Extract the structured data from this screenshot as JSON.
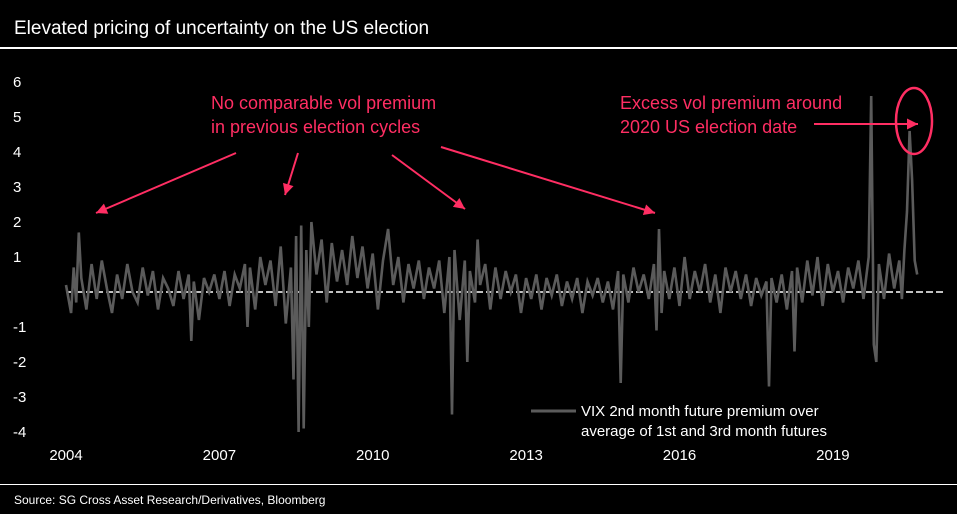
{
  "title": "Elevated pricing of uncertainty on the US election",
  "source": "Source: SG Cross Asset Research/Derivatives, Bloomberg",
  "colors": {
    "series": "#5b5b5b",
    "annotation": "#ff2e63",
    "zero_line": "#ffffff",
    "background": "#000000"
  },
  "annotations": {
    "left_line1": "No comparable vol premium",
    "left_line2": "in previous election cycles",
    "right_line1": "Excess vol premium around",
    "right_line2": "2020 US election date"
  },
  "chart_data": {
    "type": "line",
    "title": "Elevated pricing of uncertainty on the US election",
    "xlabel": "",
    "ylabel": "",
    "xlim": [
      2004.0,
      2020.9
    ],
    "ylim": [
      -4,
      6
    ],
    "x_ticks": [
      "2004",
      "2007",
      "2010",
      "2013",
      "2016",
      "2019"
    ],
    "y_ticks": [
      "6",
      "5",
      "4",
      "3",
      "2",
      "1",
      "-1",
      "-2",
      "-3",
      "-4"
    ],
    "grid": false,
    "legend_position": "bottom-right",
    "series": [
      {
        "name": "VIX 2nd month future premium over average of 1st and 3rd month futures",
        "color": "#5b5b5b",
        "points": [
          [
            2004.0,
            0.2
          ],
          [
            2004.1,
            -0.6
          ],
          [
            2004.15,
            0.7
          ],
          [
            2004.2,
            -0.3
          ],
          [
            2004.25,
            1.7
          ],
          [
            2004.3,
            0.4
          ],
          [
            2004.4,
            -0.5
          ],
          [
            2004.5,
            0.8
          ],
          [
            2004.6,
            -0.2
          ],
          [
            2004.7,
            0.9
          ],
          [
            2004.8,
            0.1
          ],
          [
            2004.9,
            -0.6
          ],
          [
            2005.0,
            0.5
          ],
          [
            2005.1,
            -0.2
          ],
          [
            2005.2,
            0.8
          ],
          [
            2005.3,
            0.0
          ],
          [
            2005.4,
            -0.3
          ],
          [
            2005.5,
            0.7
          ],
          [
            2005.6,
            -0.1
          ],
          [
            2005.7,
            0.6
          ],
          [
            2005.8,
            -0.5
          ],
          [
            2005.9,
            0.4
          ],
          [
            2006.0,
            0.1
          ],
          [
            2006.1,
            -0.4
          ],
          [
            2006.2,
            0.6
          ],
          [
            2006.3,
            -0.2
          ],
          [
            2006.4,
            0.5
          ],
          [
            2006.45,
            -1.4
          ],
          [
            2006.5,
            0.3
          ],
          [
            2006.6,
            -0.8
          ],
          [
            2006.7,
            0.4
          ],
          [
            2006.8,
            0.0
          ],
          [
            2006.9,
            0.5
          ],
          [
            2007.0,
            -0.2
          ],
          [
            2007.1,
            0.6
          ],
          [
            2007.2,
            -0.4
          ],
          [
            2007.3,
            0.5
          ],
          [
            2007.4,
            0.1
          ],
          [
            2007.5,
            0.8
          ],
          [
            2007.55,
            -1.0
          ],
          [
            2007.6,
            0.7
          ],
          [
            2007.7,
            -0.5
          ],
          [
            2007.8,
            1.0
          ],
          [
            2007.9,
            0.2
          ],
          [
            2008.0,
            0.9
          ],
          [
            2008.1,
            -0.4
          ],
          [
            2008.2,
            1.3
          ],
          [
            2008.3,
            -0.9
          ],
          [
            2008.4,
            0.7
          ],
          [
            2008.45,
            -2.5
          ],
          [
            2008.5,
            1.6
          ],
          [
            2008.55,
            -4.0
          ],
          [
            2008.6,
            1.9
          ],
          [
            2008.65,
            -3.9
          ],
          [
            2008.7,
            1.2
          ],
          [
            2008.75,
            -1.0
          ],
          [
            2008.8,
            2.0
          ],
          [
            2008.9,
            0.5
          ],
          [
            2009.0,
            1.5
          ],
          [
            2009.1,
            -0.3
          ],
          [
            2009.2,
            1.4
          ],
          [
            2009.3,
            0.3
          ],
          [
            2009.4,
            1.2
          ],
          [
            2009.5,
            0.2
          ],
          [
            2009.6,
            1.6
          ],
          [
            2009.7,
            0.4
          ],
          [
            2009.8,
            1.3
          ],
          [
            2009.9,
            0.1
          ],
          [
            2010.0,
            1.1
          ],
          [
            2010.1,
            -0.5
          ],
          [
            2010.2,
            0.9
          ],
          [
            2010.3,
            1.8
          ],
          [
            2010.4,
            0.2
          ],
          [
            2010.5,
            1.0
          ],
          [
            2010.6,
            -0.3
          ],
          [
            2010.7,
            0.8
          ],
          [
            2010.8,
            0.1
          ],
          [
            2010.9,
            0.9
          ],
          [
            2011.0,
            -0.2
          ],
          [
            2011.1,
            0.7
          ],
          [
            2011.2,
            0.1
          ],
          [
            2011.3,
            0.9
          ],
          [
            2011.4,
            -0.6
          ],
          [
            2011.5,
            1.0
          ],
          [
            2011.55,
            -3.5
          ],
          [
            2011.6,
            1.2
          ],
          [
            2011.7,
            -0.8
          ],
          [
            2011.8,
            0.9
          ],
          [
            2011.85,
            -2.0
          ],
          [
            2011.9,
            0.6
          ],
          [
            2012.0,
            -0.3
          ],
          [
            2012.05,
            1.5
          ],
          [
            2012.1,
            0.2
          ],
          [
            2012.2,
            0.8
          ],
          [
            2012.3,
            -0.5
          ],
          [
            2012.4,
            0.7
          ],
          [
            2012.5,
            -0.2
          ],
          [
            2012.6,
            0.6
          ],
          [
            2012.7,
            0.0
          ],
          [
            2012.8,
            0.5
          ],
          [
            2012.9,
            -0.6
          ],
          [
            2013.0,
            0.4
          ],
          [
            2013.1,
            -0.2
          ],
          [
            2013.2,
            0.5
          ],
          [
            2013.3,
            -0.5
          ],
          [
            2013.4,
            0.4
          ],
          [
            2013.5,
            -0.1
          ],
          [
            2013.6,
            0.5
          ],
          [
            2013.7,
            -0.4
          ],
          [
            2013.8,
            0.3
          ],
          [
            2013.9,
            -0.2
          ],
          [
            2014.0,
            0.4
          ],
          [
            2014.1,
            -0.6
          ],
          [
            2014.2,
            0.3
          ],
          [
            2014.3,
            -0.1
          ],
          [
            2014.4,
            0.4
          ],
          [
            2014.5,
            -0.3
          ],
          [
            2014.6,
            0.3
          ],
          [
            2014.7,
            -0.5
          ],
          [
            2014.8,
            0.6
          ],
          [
            2014.85,
            -2.6
          ],
          [
            2014.9,
            0.5
          ],
          [
            2015.0,
            -0.3
          ],
          [
            2015.1,
            0.7
          ],
          [
            2015.2,
            0.0
          ],
          [
            2015.3,
            0.5
          ],
          [
            2015.4,
            -0.2
          ],
          [
            2015.5,
            0.8
          ],
          [
            2015.55,
            -1.1
          ],
          [
            2015.6,
            1.8
          ],
          [
            2015.65,
            -0.6
          ],
          [
            2015.7,
            0.6
          ],
          [
            2015.8,
            -0.2
          ],
          [
            2015.9,
            0.7
          ],
          [
            2016.0,
            -0.4
          ],
          [
            2016.1,
            1.0
          ],
          [
            2016.2,
            -0.2
          ],
          [
            2016.3,
            0.6
          ],
          [
            2016.4,
            0.0
          ],
          [
            2016.5,
            0.8
          ],
          [
            2016.6,
            -0.3
          ],
          [
            2016.7,
            0.5
          ],
          [
            2016.8,
            -0.6
          ],
          [
            2016.9,
            0.7
          ],
          [
            2017.0,
            0.0
          ],
          [
            2017.1,
            0.6
          ],
          [
            2017.2,
            -0.2
          ],
          [
            2017.3,
            0.5
          ],
          [
            2017.4,
            -0.4
          ],
          [
            2017.5,
            0.4
          ],
          [
            2017.6,
            -0.1
          ],
          [
            2017.7,
            0.3
          ],
          [
            2017.75,
            -2.7
          ],
          [
            2017.8,
            0.4
          ],
          [
            2017.9,
            -0.3
          ],
          [
            2018.0,
            0.5
          ],
          [
            2018.1,
            -0.5
          ],
          [
            2018.2,
            0.6
          ],
          [
            2018.25,
            -1.7
          ],
          [
            2018.3,
            0.7
          ],
          [
            2018.4,
            -0.3
          ],
          [
            2018.5,
            0.9
          ],
          [
            2018.6,
            -0.1
          ],
          [
            2018.7,
            1.0
          ],
          [
            2018.8,
            -0.4
          ],
          [
            2018.9,
            0.8
          ],
          [
            2019.0,
            0.0
          ],
          [
            2019.1,
            0.6
          ],
          [
            2019.2,
            -0.3
          ],
          [
            2019.3,
            0.7
          ],
          [
            2019.4,
            0.1
          ],
          [
            2019.5,
            0.9
          ],
          [
            2019.6,
            -0.2
          ],
          [
            2019.7,
            1.0
          ],
          [
            2019.75,
            5.6
          ],
          [
            2019.8,
            -1.5
          ],
          [
            2019.85,
            -2.0
          ],
          [
            2019.9,
            0.8
          ],
          [
            2020.0,
            -0.2
          ],
          [
            2020.1,
            1.1
          ],
          [
            2020.2,
            0.1
          ],
          [
            2020.3,
            0.9
          ],
          [
            2020.35,
            -0.2
          ],
          [
            2020.4,
            1.2
          ],
          [
            2020.45,
            2.3
          ],
          [
            2020.5,
            4.6
          ],
          [
            2020.55,
            3.2
          ],
          [
            2020.6,
            0.9
          ],
          [
            2020.65,
            0.5
          ]
        ]
      }
    ]
  }
}
